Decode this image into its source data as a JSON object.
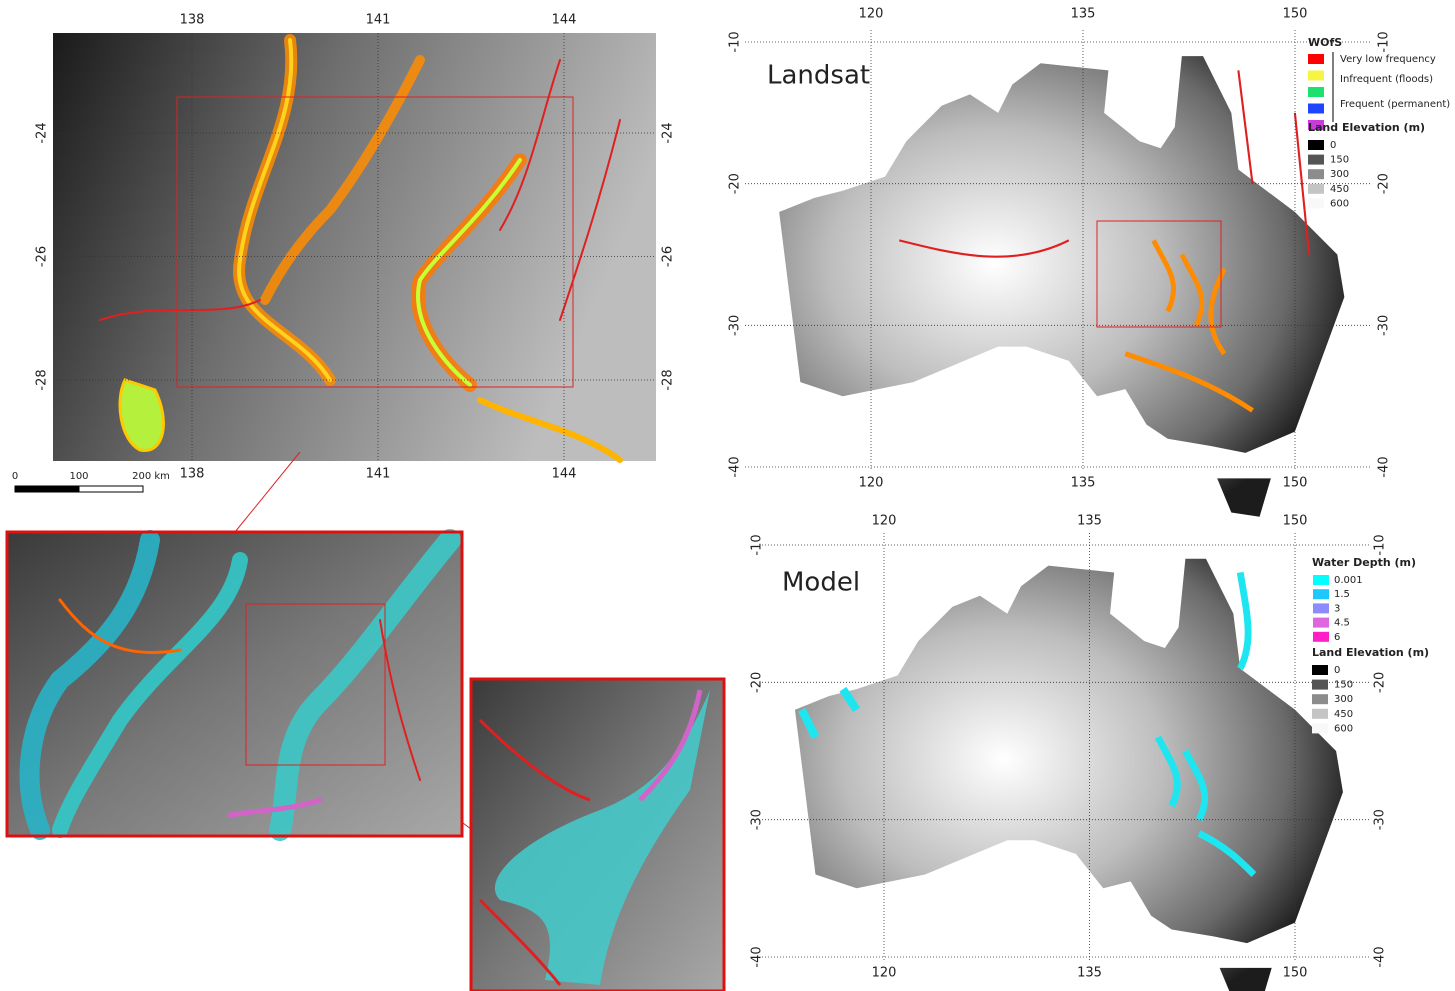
{
  "inset_map": {
    "x_ticks": [
      138,
      141,
      144
    ],
    "y_ticks": [
      -24,
      -26,
      -28
    ],
    "scale_bar": {
      "labels": [
        "0",
        "100",
        "200 km"
      ]
    }
  },
  "landsat_map": {
    "title": "Landsat",
    "lon_ticks": [
      120,
      135,
      150
    ],
    "lat_ticks": [
      -10,
      -20,
      -30,
      -40
    ],
    "legend": {
      "title": "WOfS",
      "swatches": [
        "#ff0000",
        "#f5f542",
        "#1ee06e",
        "#1e46ff",
        "#c83cdc"
      ],
      "labels": [
        "Very low frequency",
        "Infrequent (floods)",
        "Frequent (permanent)"
      ],
      "elevation": {
        "title": "Land Elevation (m)",
        "items": [
          {
            "value": 0,
            "color": "#000000"
          },
          {
            "value": 150,
            "color": "#555555"
          },
          {
            "value": 300,
            "color": "#8c8c8c"
          },
          {
            "value": 450,
            "color": "#c4c4c4"
          },
          {
            "value": 600,
            "color": "#f8f8f8"
          }
        ]
      }
    }
  },
  "model_map": {
    "title": "Model",
    "lon_ticks": [
      120,
      135,
      150
    ],
    "lat_ticks": [
      -10,
      -20,
      -30,
      -40
    ],
    "legend": {
      "title": "Water Depth (m)",
      "items": [
        {
          "value": 0.001,
          "color": "#00ffff"
        },
        {
          "value": 1.5,
          "color": "#1ec8ff"
        },
        {
          "value": 3,
          "color": "#8c8cff"
        },
        {
          "value": 4.5,
          "color": "#e066e0"
        },
        {
          "value": 6,
          "color": "#ff1ec8"
        }
      ],
      "elevation": {
        "title": "Land Elevation (m)",
        "items": [
          {
            "value": 0,
            "color": "#000000"
          },
          {
            "value": 150,
            "color": "#555555"
          },
          {
            "value": 300,
            "color": "#8c8c8c"
          },
          {
            "value": 450,
            "color": "#c4c4c4"
          },
          {
            "value": 600,
            "color": "#f8f8f8"
          }
        ]
      }
    }
  }
}
